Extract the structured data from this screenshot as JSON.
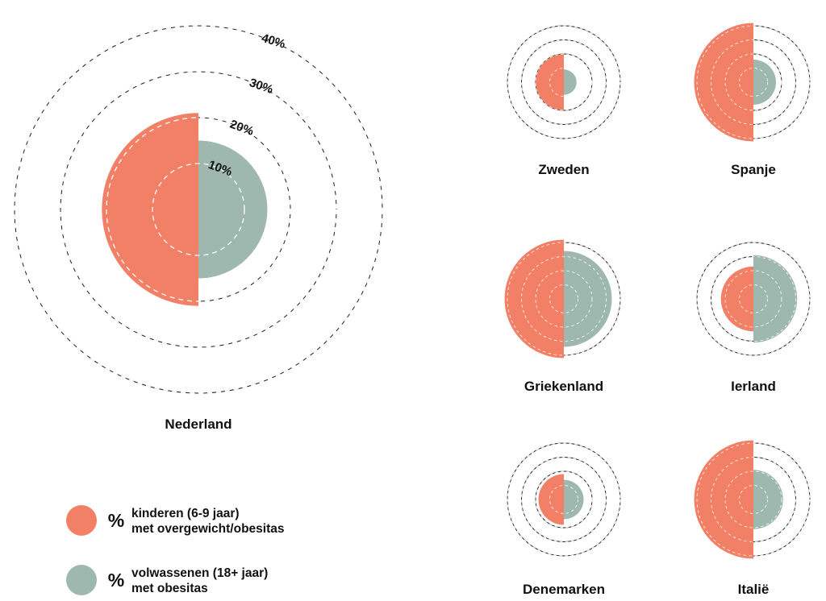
{
  "chart_data": [
    {
      "type": "polar-semicircle",
      "country": "Nederland",
      "ring_labels": [
        "10%",
        "20%",
        "30%",
        "40%"
      ],
      "series": [
        {
          "name": "kinderen (6-9 jaar) met overgewicht/obesitas",
          "value": 21
        },
        {
          "name": "volwassenen (18+ jaar) met obesitas",
          "value": 15
        }
      ]
    },
    {
      "type": "polar-semicircle",
      "country": "Zweden",
      "series": [
        {
          "name": "kinderen (6-9 jaar) met overgewicht/obesitas",
          "value": 20
        },
        {
          "name": "volwassenen (18+ jaar) met obesitas",
          "value": 9
        }
      ]
    },
    {
      "type": "polar-semicircle",
      "country": "Spanje",
      "series": [
        {
          "name": "kinderen (6-9 jaar) met overgewicht/obesitas",
          "value": 42
        },
        {
          "name": "volwassenen (18+ jaar) met obesitas",
          "value": 16
        }
      ]
    },
    {
      "type": "polar-semicircle",
      "country": "Griekenland",
      "series": [
        {
          "name": "kinderen (6-9 jaar) met overgewicht/obesitas",
          "value": 42
        },
        {
          "name": "volwassenen (18+ jaar) met obesitas",
          "value": 34
        }
      ]
    },
    {
      "type": "polar-semicircle",
      "country": "Ierland",
      "series": [
        {
          "name": "kinderen (6-9 jaar) met overgewicht/obesitas",
          "value": 23
        },
        {
          "name": "volwassenen (18+ jaar) met obesitas",
          "value": 31
        }
      ]
    },
    {
      "type": "polar-semicircle",
      "country": "Denemarken",
      "series": [
        {
          "name": "kinderen (6-9 jaar) met overgewicht/obesitas",
          "value": 18
        },
        {
          "name": "volwassenen (18+ jaar) met obesitas",
          "value": 14
        }
      ]
    },
    {
      "type": "polar-semicircle",
      "country": "Italië",
      "series": [
        {
          "name": "kinderen (6-9 jaar) met overgewicht/obesitas",
          "value": 42
        },
        {
          "name": "volwassenen (18+ jaar) met obesitas",
          "value": 21
        }
      ]
    }
  ],
  "legend": [
    {
      "symbol": "%",
      "line1": "kinderen (6-9 jaar)",
      "line2": "met overgewicht/obesitas",
      "color": "#f28066"
    },
    {
      "symbol": "%",
      "line1": "volwassenen (18+ jaar)",
      "line2": "met obesitas",
      "color": "#9eb8b0"
    }
  ],
  "colors": {
    "children": "#f28066",
    "adults": "#9eb8b0",
    "rings": "#1f1f1f",
    "dashed": "#ffffff"
  }
}
